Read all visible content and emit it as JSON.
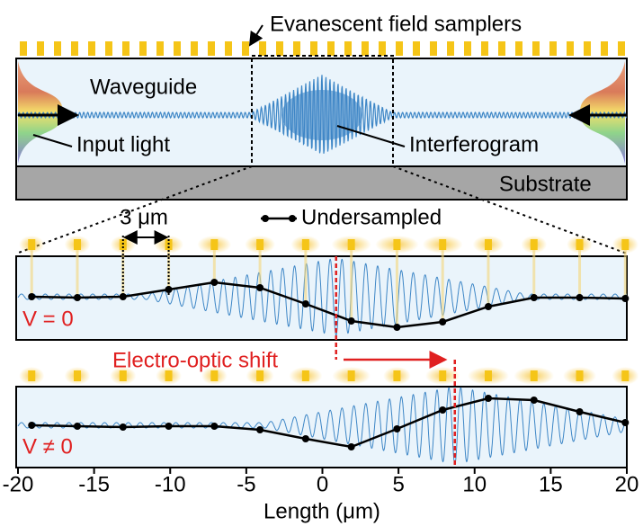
{
  "labels": {
    "samplers": "Evanescent field samplers",
    "waveguide": "Waveguide",
    "input_light": "Input light",
    "interferogram": "Interferogram",
    "substrate": "Substrate",
    "spacing": "3 μm",
    "shift": "Electro-optic shift"
  },
  "legend": "Undersampled",
  "x_axis": {
    "label": "Length (μm)",
    "xlim": [
      -20,
      20
    ],
    "ticks": [
      -20,
      -15,
      -10,
      -5,
      0,
      5,
      10,
      15,
      20
    ]
  },
  "sample_x": [
    -19.1,
    -16.1,
    -13.1,
    -10.1,
    -7.1,
    -4.1,
    -1.1,
    1.9,
    4.9,
    7.9,
    10.9,
    13.9,
    16.9,
    19.9
  ],
  "panels": [
    {
      "label": "V = 0",
      "values": [
        0,
        -0.1,
        0,
        0.8,
        1.6,
        1.0,
        -0.8,
        -2.7,
        -3.4,
        -2.8,
        -1.1,
        -0.1,
        -0.1,
        -0.2
      ]
    },
    {
      "label": "V ≠ 0",
      "values": [
        0,
        -0.1,
        -0.2,
        -0.1,
        -0.1,
        -0.5,
        -1.5,
        -2.4,
        -0.4,
        1.7,
        3.0,
        2.8,
        1.5,
        0.3
      ]
    }
  ]
}
